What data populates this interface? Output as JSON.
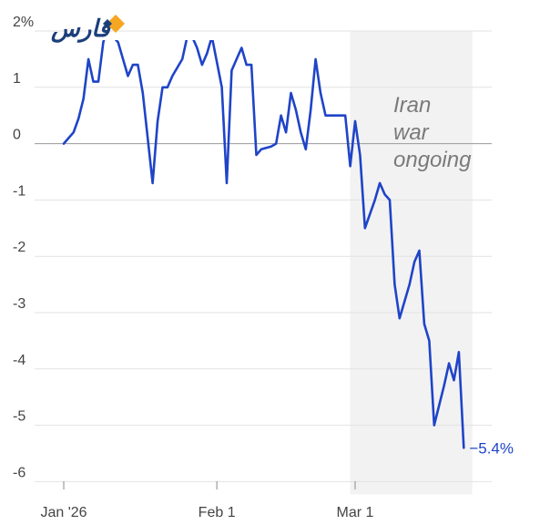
{
  "logo": {
    "text": "فارس",
    "text_color": "#1b3f7a",
    "diamond_colors": [
      "#f5a623",
      "#1b3f7a"
    ]
  },
  "chart_data": {
    "type": "line",
    "title": "",
    "xlabel": "",
    "ylabel": "",
    "ylim": [
      -6,
      2
    ],
    "y_ticks": [
      2,
      1,
      0,
      -1,
      -2,
      -3,
      -4,
      -5,
      -6
    ],
    "y_tick_labels": [
      "2%",
      "1",
      "0",
      "-1",
      "-2",
      "-3",
      "-4",
      "-5",
      "-6"
    ],
    "x_ticks": [
      {
        "label": "Jan '26",
        "date": "2026-01-01"
      },
      {
        "label": "Feb 1",
        "date": "2026-02-01"
      },
      {
        "label": "Mar 1",
        "date": "2026-03-01"
      }
    ],
    "grid": "horizontal",
    "line_color": "#1f44c8",
    "shaded_region": {
      "start": "2026-02-28",
      "end": "2026-03-24",
      "label_lines": [
        "Iran",
        "war",
        "ongoing"
      ],
      "color": "#f2f2f2"
    },
    "end_label": "−5.4%",
    "series": [
      {
        "points": [
          [
            "2026-01-01",
            0.0
          ],
          [
            "2026-01-02",
            0.1
          ],
          [
            "2026-01-03",
            0.2
          ],
          [
            "2026-01-04",
            0.45
          ],
          [
            "2026-01-05",
            0.8
          ],
          [
            "2026-01-06",
            1.5
          ],
          [
            "2026-01-07",
            1.1
          ],
          [
            "2026-01-08",
            1.1
          ],
          [
            "2026-01-09",
            1.8
          ],
          [
            "2026-01-10",
            2.1
          ],
          [
            "2026-01-11",
            1.9
          ],
          [
            "2026-01-12",
            1.8
          ],
          [
            "2026-01-14",
            1.2
          ],
          [
            "2026-01-15",
            1.4
          ],
          [
            "2026-01-16",
            1.4
          ],
          [
            "2026-01-17",
            0.9
          ],
          [
            "2026-01-18",
            0.1
          ],
          [
            "2026-01-19",
            -0.7
          ],
          [
            "2026-01-20",
            0.4
          ],
          [
            "2026-01-21",
            1.0
          ],
          [
            "2026-01-22",
            1.0
          ],
          [
            "2026-01-23",
            1.2
          ],
          [
            "2026-01-25",
            1.5
          ],
          [
            "2026-01-26",
            1.9
          ],
          [
            "2026-01-27",
            1.9
          ],
          [
            "2026-01-28",
            1.7
          ],
          [
            "2026-01-29",
            1.4
          ],
          [
            "2026-01-30",
            1.6
          ],
          [
            "2026-01-31",
            1.9
          ],
          [
            "2026-02-02",
            1.0
          ],
          [
            "2026-02-03",
            -0.7
          ],
          [
            "2026-02-04",
            1.3
          ],
          [
            "2026-02-05",
            1.5
          ],
          [
            "2026-02-06",
            1.7
          ],
          [
            "2026-02-07",
            1.4
          ],
          [
            "2026-02-08",
            1.4
          ],
          [
            "2026-02-09",
            -0.2
          ],
          [
            "2026-02-10",
            -0.1
          ],
          [
            "2026-02-12",
            -0.05
          ],
          [
            "2026-02-13",
            0.0
          ],
          [
            "2026-02-14",
            0.5
          ],
          [
            "2026-02-15",
            0.2
          ],
          [
            "2026-02-16",
            0.9
          ],
          [
            "2026-02-17",
            0.6
          ],
          [
            "2026-02-18",
            0.2
          ],
          [
            "2026-02-19",
            -0.1
          ],
          [
            "2026-02-20",
            0.6
          ],
          [
            "2026-02-21",
            1.5
          ],
          [
            "2026-02-22",
            0.9
          ],
          [
            "2026-02-23",
            0.5
          ],
          [
            "2026-02-25",
            0.5
          ],
          [
            "2026-02-27",
            0.5
          ],
          [
            "2026-02-28",
            -0.4
          ],
          [
            "2026-03-01",
            0.4
          ],
          [
            "2026-03-02",
            -0.2
          ],
          [
            "2026-03-03",
            -1.5
          ],
          [
            "2026-03-05",
            -1.0
          ],
          [
            "2026-03-06",
            -0.7
          ],
          [
            "2026-03-07",
            -0.9
          ],
          [
            "2026-03-08",
            -1.0
          ],
          [
            "2026-03-09",
            -2.5
          ],
          [
            "2026-03-10",
            -3.1
          ],
          [
            "2026-03-12",
            -2.5
          ],
          [
            "2026-03-13",
            -2.1
          ],
          [
            "2026-03-14",
            -1.9
          ],
          [
            "2026-03-15",
            -3.2
          ],
          [
            "2026-03-16",
            -3.5
          ],
          [
            "2026-03-17",
            -5.0
          ],
          [
            "2026-03-19",
            -4.3
          ],
          [
            "2026-03-20",
            -3.9
          ],
          [
            "2026-03-21",
            -4.2
          ],
          [
            "2026-03-22",
            -3.7
          ],
          [
            "2026-03-23",
            -5.4
          ]
        ]
      }
    ]
  }
}
